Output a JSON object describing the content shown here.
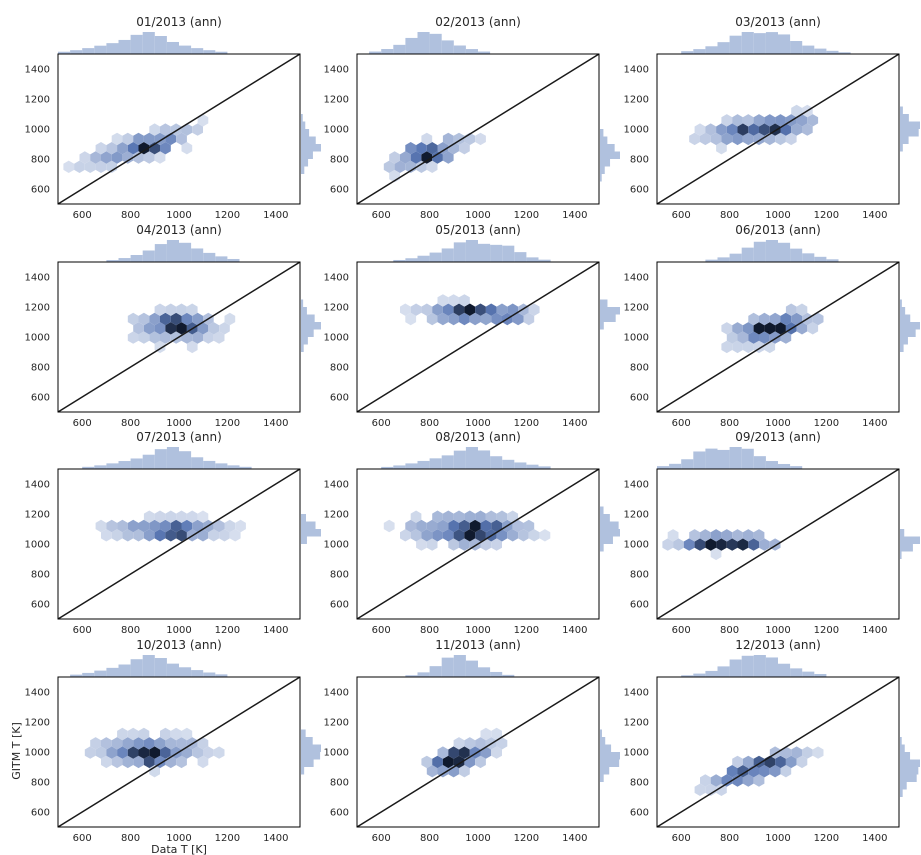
{
  "figure": {
    "xlabel": "Data T [K]",
    "ylabel": "GITM T [K]",
    "colors": {
      "hex_light": "#e8edf6",
      "hex_mid": "#5a78b5",
      "hex_dark": "#101a2e",
      "hist": "#b0c1de",
      "axis": "#000000",
      "diagonal": "#1a1a1a"
    }
  },
  "chart_data": [
    {
      "type": "heatmap",
      "title": "01/2013 (ann)",
      "xlim": [
        500,
        1500
      ],
      "ylim": [
        500,
        1500
      ],
      "xticks": [
        600,
        800,
        1000,
        1200,
        1400
      ],
      "yticks": [
        600,
        800,
        1000,
        1200,
        1400
      ],
      "center": [
        850,
        880
      ],
      "spread": [
        170,
        60
      ],
      "slope": 0.45,
      "peaks": [
        [
          850,
          870
        ],
        [
          900,
          900
        ]
      ],
      "identity_line": true,
      "marginal_histograms": true
    },
    {
      "type": "heatmap",
      "title": "02/2013 (ann)",
      "xlim": [
        500,
        1500
      ],
      "ylim": [
        500,
        1500
      ],
      "xticks": [
        600,
        800,
        1000,
        1200,
        1400
      ],
      "yticks": [
        600,
        800,
        1000,
        1200,
        1400
      ],
      "center": [
        800,
        840
      ],
      "spread": [
        120,
        60
      ],
      "slope": 0.5,
      "peaks": [
        [
          810,
          820
        ],
        [
          760,
          850
        ]
      ],
      "identity_line": true,
      "marginal_histograms": true
    },
    {
      "type": "heatmap",
      "title": "03/2013 (ann)",
      "xlim": [
        500,
        1500
      ],
      "ylim": [
        500,
        1500
      ],
      "xticks": [
        600,
        800,
        1000,
        1200,
        1400
      ],
      "yticks": [
        600,
        800,
        1000,
        1200,
        1400
      ],
      "center": [
        930,
        1000
      ],
      "spread": [
        160,
        60
      ],
      "slope": 0.2,
      "peaks": [
        [
          860,
          990
        ],
        [
          1000,
          1020
        ]
      ],
      "identity_line": true,
      "marginal_histograms": true
    },
    {
      "type": "heatmap",
      "title": "04/2013 (ann)",
      "xlim": [
        500,
        1500
      ],
      "ylim": [
        500,
        1500
      ],
      "xticks": [
        600,
        800,
        1000,
        1200,
        1400
      ],
      "yticks": [
        600,
        800,
        1000,
        1200,
        1400
      ],
      "center": [
        990,
        1070
      ],
      "spread": [
        130,
        80
      ],
      "slope": 0.0,
      "peaks": [
        [
          1000,
          1070
        ],
        [
          950,
          1100
        ]
      ],
      "identity_line": true,
      "marginal_histograms": true
    },
    {
      "type": "heatmap",
      "title": "05/2013 (ann)",
      "xlim": [
        500,
        1500
      ],
      "ylim": [
        500,
        1500
      ],
      "xticks": [
        600,
        800,
        1000,
        1200,
        1400
      ],
      "yticks": [
        600,
        800,
        1000,
        1200,
        1400
      ],
      "center": [
        980,
        1160
      ],
      "spread": [
        150,
        50
      ],
      "slope": 0.0,
      "peaks": [
        [
          960,
          1180
        ],
        [
          1120,
          1140
        ]
      ],
      "identity_line": true,
      "marginal_histograms": true
    },
    {
      "type": "heatmap",
      "title": "06/2013 (ann)",
      "xlim": [
        500,
        1500
      ],
      "ylim": [
        500,
        1500
      ],
      "xticks": [
        600,
        800,
        1000,
        1200,
        1400
      ],
      "yticks": [
        600,
        800,
        1000,
        1200,
        1400
      ],
      "center": [
        980,
        1060
      ],
      "spread": [
        130,
        70
      ],
      "slope": 0.35,
      "peaks": [
        [
          920,
          1050
        ],
        [
          1000,
          1070
        ]
      ],
      "identity_line": true,
      "marginal_histograms": true
    },
    {
      "type": "heatmap",
      "title": "07/2013 (ann)",
      "xlim": [
        500,
        1500
      ],
      "ylim": [
        500,
        1500
      ],
      "xticks": [
        600,
        800,
        1000,
        1200,
        1400
      ],
      "yticks": [
        600,
        800,
        1000,
        1200,
        1400
      ],
      "center": [
        950,
        1100
      ],
      "spread": [
        170,
        50
      ],
      "slope": 0.0,
      "peaks": [
        [
          940,
          1070
        ],
        [
          1000,
          1080
        ]
      ],
      "identity_line": true,
      "marginal_histograms": true
    },
    {
      "type": "heatmap",
      "title": "08/2013 (ann)",
      "xlim": [
        500,
        1500
      ],
      "ylim": [
        500,
        1500
      ],
      "xticks": [
        600,
        800,
        1000,
        1200,
        1400
      ],
      "yticks": [
        600,
        800,
        1000,
        1200,
        1400
      ],
      "center": [
        960,
        1100
      ],
      "spread": [
        170,
        70
      ],
      "slope": 0.0,
      "peaks": [
        [
          960,
          1040
        ],
        [
          1000,
          1100
        ]
      ],
      "identity_line": true,
      "marginal_histograms": true
    },
    {
      "type": "heatmap",
      "title": "09/2013 (ann)",
      "xlim": [
        500,
        1500
      ],
      "ylim": [
        500,
        1500
      ],
      "xticks": [
        600,
        800,
        1000,
        1200,
        1400
      ],
      "yticks": [
        600,
        800,
        1000,
        1200,
        1400
      ],
      "center": [
        800,
        1010
      ],
      "spread": [
        150,
        40
      ],
      "slope": 0.0,
      "peaks": [
        [
          700,
          1010
        ],
        [
          850,
          1010
        ]
      ],
      "identity_line": true,
      "marginal_histograms": true
    },
    {
      "type": "heatmap",
      "title": "10/2013 (ann)",
      "xlim": [
        500,
        1500
      ],
      "ylim": [
        500,
        1500
      ],
      "xticks": [
        600,
        800,
        1000,
        1200,
        1400
      ],
      "yticks": [
        600,
        800,
        1000,
        1200,
        1400
      ],
      "center": [
        880,
        1010
      ],
      "spread": [
        160,
        70
      ],
      "slope": 0.0,
      "peaks": [
        [
          860,
          1000
        ],
        [
          900,
          930
        ]
      ],
      "identity_line": true,
      "marginal_histograms": true
    },
    {
      "type": "heatmap",
      "title": "11/2013 (ann)",
      "xlim": [
        500,
        1500
      ],
      "ylim": [
        500,
        1500
      ],
      "xticks": [
        600,
        800,
        1000,
        1200,
        1400
      ],
      "yticks": [
        600,
        800,
        1000,
        1200,
        1400
      ],
      "center": [
        930,
        960
      ],
      "spread": [
        100,
        60
      ],
      "slope": 0.6,
      "peaks": [
        [
          880,
          920
        ],
        [
          930,
          980
        ]
      ],
      "identity_line": true,
      "marginal_histograms": true
    },
    {
      "type": "heatmap",
      "title": "12/2013 (ann)",
      "xlim": [
        500,
        1500
      ],
      "ylim": [
        500,
        1500
      ],
      "xticks": [
        600,
        800,
        1000,
        1200,
        1400
      ],
      "yticks": [
        600,
        800,
        1000,
        1200,
        1400
      ],
      "center": [
        920,
        890
      ],
      "spread": [
        140,
        55
      ],
      "slope": 0.5,
      "peaks": [
        [
          850,
          840
        ],
        [
          950,
          920
        ]
      ],
      "identity_line": true,
      "marginal_histograms": true
    }
  ]
}
